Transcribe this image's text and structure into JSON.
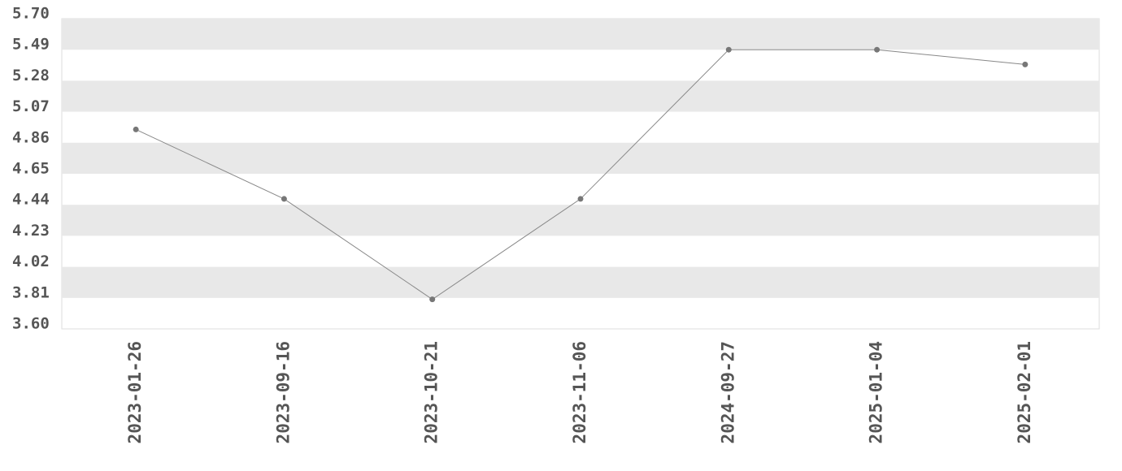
{
  "chart_data": {
    "type": "line",
    "categories": [
      "2023-01-26",
      "2023-09-16",
      "2023-10-21",
      "2023-11-06",
      "2024-09-27",
      "2025-01-04",
      "2025-02-01"
    ],
    "values": [
      4.95,
      4.48,
      3.8,
      4.48,
      5.49,
      5.49,
      5.39
    ],
    "color": "#888888",
    "marker_color": "#777777",
    "ylim": [
      3.6,
      5.7
    ],
    "yticks": [
      {
        "value": 5.7,
        "label": "5.70"
      },
      5.49,
      5.28,
      5.07,
      4.86,
      4.65,
      4.44,
      4.23,
      4.02,
      3.81,
      {
        "value": 3.6,
        "label": "3.60"
      }
    ],
    "grid": "bands",
    "band_color": "#e8e8e8"
  }
}
